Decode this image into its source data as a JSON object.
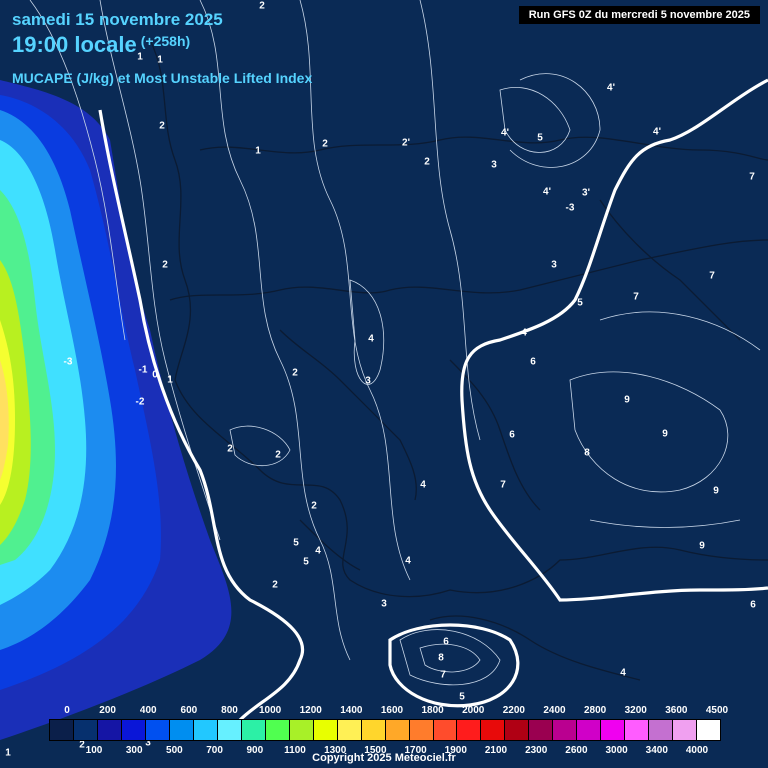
{
  "header": {
    "date": "samedi 15 novembre 2025",
    "time": "19:00 locale",
    "offset": "(+258h)",
    "subtitle": "MUCAPE (J/kg) et Most Unstable Lifted Index"
  },
  "run_info": "Run GFS 0Z du mercredi 5 novembre 2025",
  "copyright": "Copyright 2025 Meteociel.fr",
  "legend": {
    "top_labels": [
      "0",
      "200",
      "400",
      "600",
      "800",
      "1000",
      "1200",
      "1400",
      "1600",
      "1800",
      "2000",
      "2200",
      "2400",
      "2800",
      "3200",
      "3600",
      "4500"
    ],
    "bottom_labels": [
      "100",
      "300",
      "500",
      "700",
      "900",
      "1100",
      "1300",
      "1500",
      "1700",
      "1900",
      "2100",
      "2300",
      "2600",
      "3000",
      "3400",
      "4000"
    ],
    "colors": [
      "#0b1f4a",
      "#06306e",
      "#1515a5",
      "#0a16d8",
      "#0050f0",
      "#008ef0",
      "#22c8ff",
      "#66f0ff",
      "#2cf0a6",
      "#50ff50",
      "#a8f028",
      "#e8ff00",
      "#fff055",
      "#ffd62c",
      "#ffa828",
      "#ff7c2c",
      "#ff4c2c",
      "#ff1c1c",
      "#e80a0a",
      "#b00014",
      "#9a0050",
      "#ba0090",
      "#d000c8",
      "#f000f0",
      "#ff5cff",
      "#c470d0",
      "#f0a0f0",
      "#ffffff"
    ]
  },
  "lifted_index_labels": [
    {
      "text": "2"
    },
    {
      "text": "1"
    },
    {
      "text": "1"
    },
    {
      "text": "2"
    },
    {
      "text": "1"
    },
    {
      "text": "2"
    },
    {
      "text": "2'"
    },
    {
      "text": "2"
    },
    {
      "text": "3"
    },
    {
      "text": "4'"
    },
    {
      "text": "5"
    },
    {
      "text": "4'"
    },
    {
      "text": "4'"
    },
    {
      "text": "3'"
    },
    {
      "text": "4'"
    },
    {
      "text": "-3"
    },
    {
      "text": "7"
    },
    {
      "text": "2"
    },
    {
      "text": "3"
    },
    {
      "text": "7"
    },
    {
      "text": "7"
    },
    {
      "text": "5"
    },
    {
      "text": "4"
    },
    {
      "text": "4"
    },
    {
      "text": "6"
    },
    {
      "text": "-3"
    },
    {
      "text": "-1"
    },
    {
      "text": "0"
    },
    {
      "text": "1"
    },
    {
      "text": "2"
    },
    {
      "text": "-2"
    },
    {
      "text": "3"
    },
    {
      "text": "9"
    },
    {
      "text": "9"
    },
    {
      "text": "6"
    },
    {
      "text": "2"
    },
    {
      "text": "2"
    },
    {
      "text": "8"
    },
    {
      "text": "4"
    },
    {
      "text": "7"
    },
    {
      "text": "9"
    },
    {
      "text": "2"
    },
    {
      "text": "5"
    },
    {
      "text": "4"
    },
    {
      "text": "5"
    },
    {
      "text": "4"
    },
    {
      "text": "9"
    },
    {
      "text": "2"
    },
    {
      "text": "3"
    },
    {
      "text": "6"
    },
    {
      "text": "6"
    },
    {
      "text": "8"
    },
    {
      "text": "7"
    },
    {
      "text": "4"
    },
    {
      "text": "5"
    },
    {
      "text": "1"
    },
    {
      "text": "2"
    },
    {
      "text": "3"
    }
  ]
}
